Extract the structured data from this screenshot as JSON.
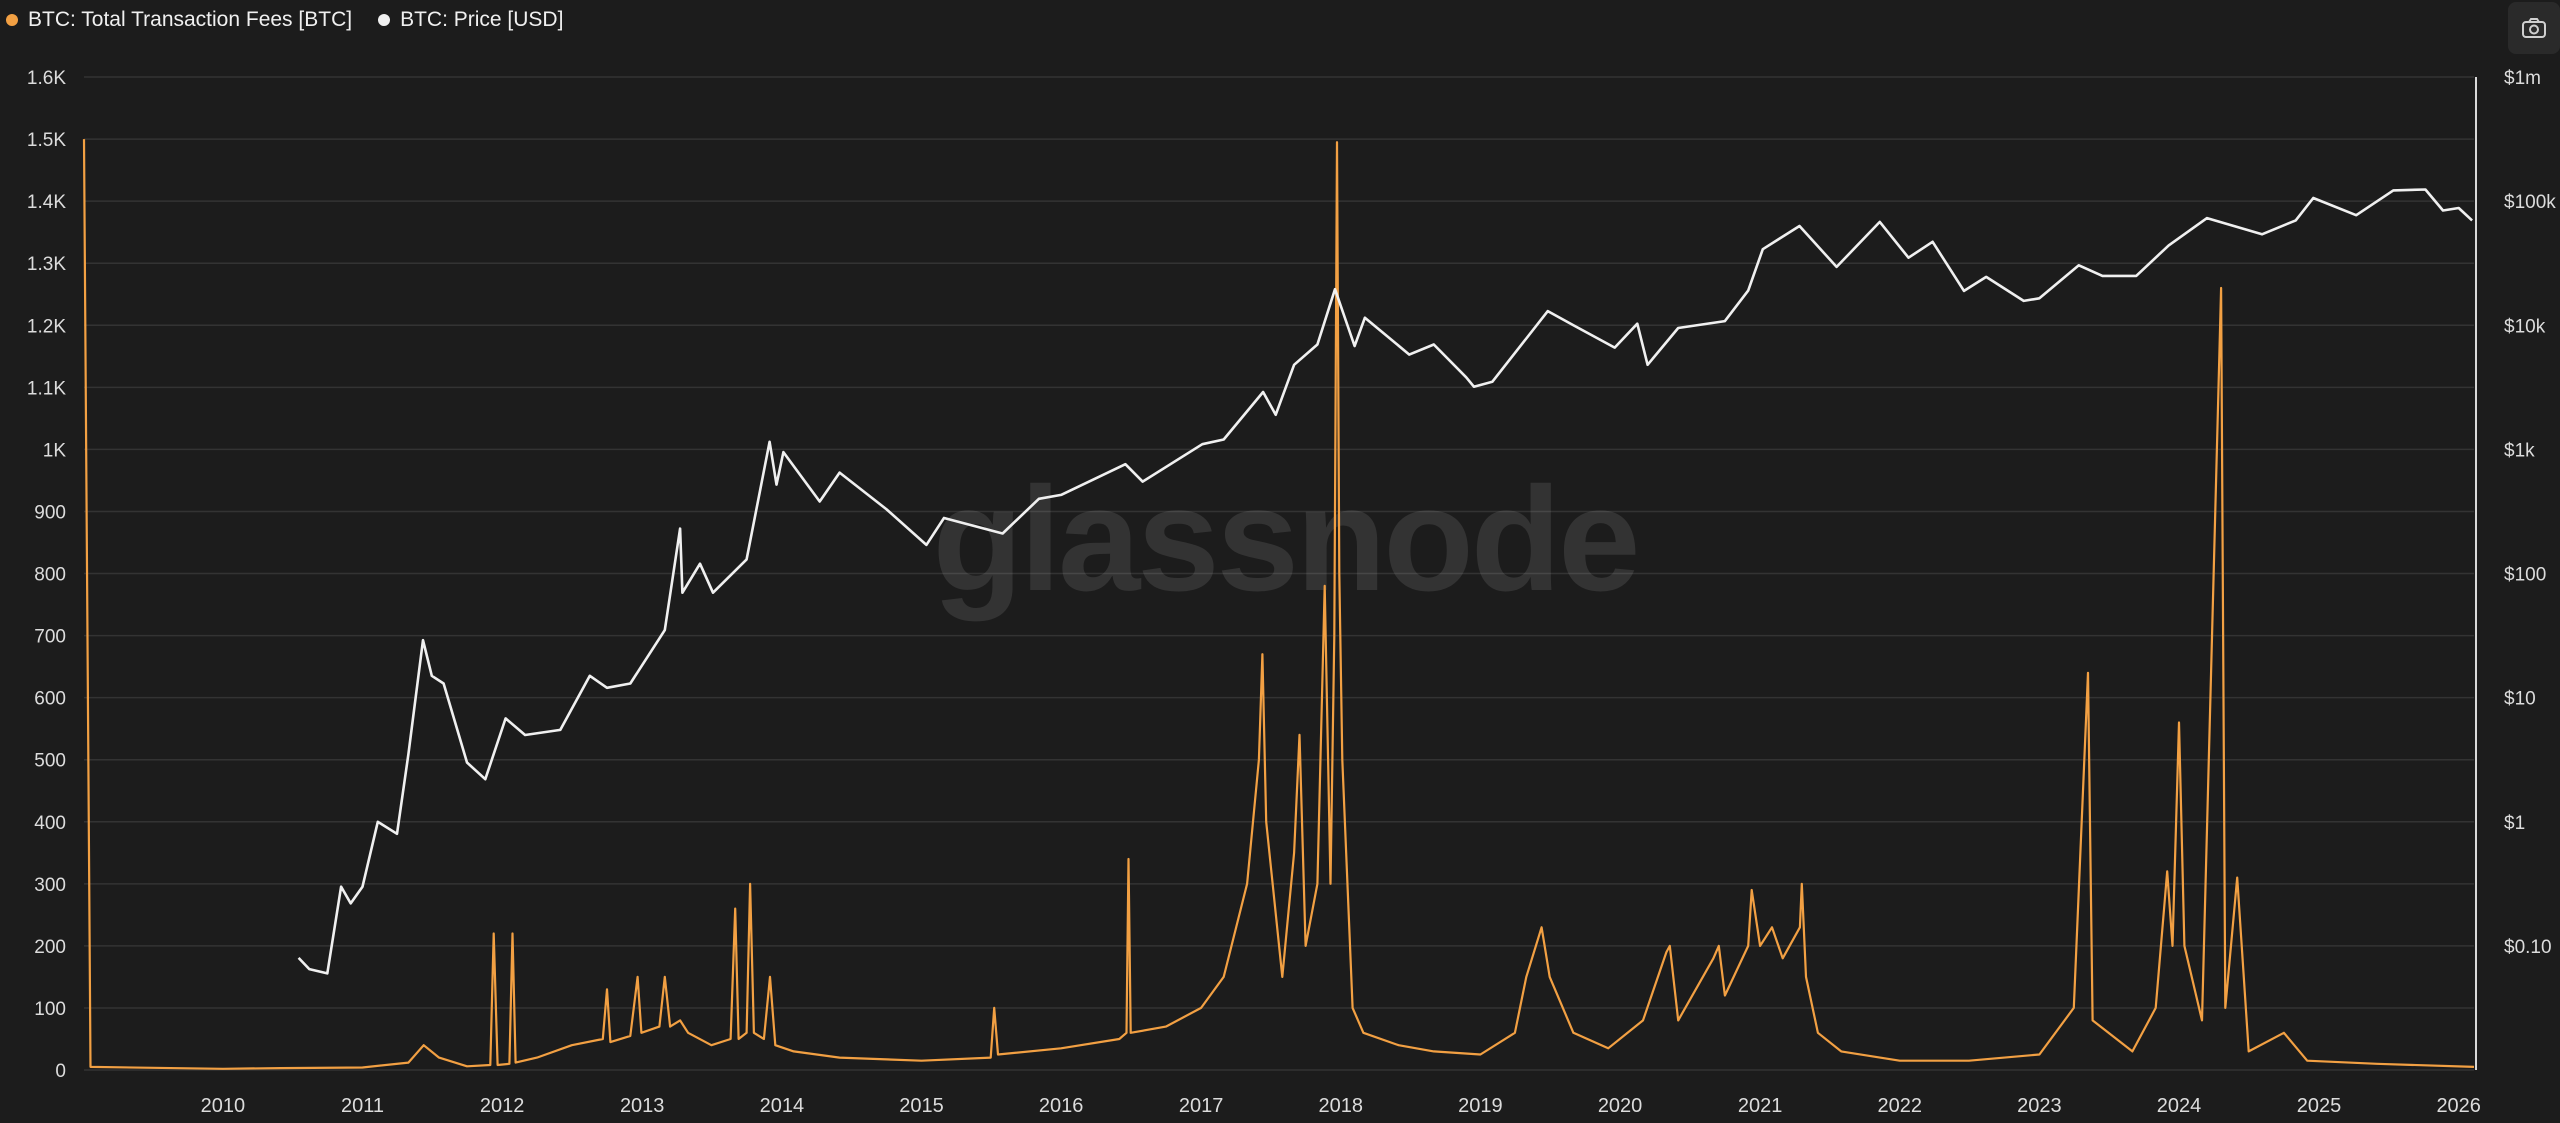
{
  "legend": {
    "fees_label": "BTC: Total Transaction Fees [BTC]",
    "price_label": "BTC: Price [USD]"
  },
  "watermark": "glassnode",
  "colors": {
    "background": "#1c1c1c",
    "fees": "#f2a043",
    "price": "#f0f0f0",
    "grid": "#333333"
  },
  "icons": {
    "camera": "camera-icon"
  },
  "chart_data": {
    "type": "line",
    "grid": true,
    "legend_position": "top-left",
    "x_range": [
      "2009-01-03",
      "2026-02-10"
    ],
    "x_ticks": [
      "2010",
      "2011",
      "2012",
      "2013",
      "2014",
      "2015",
      "2016",
      "2017",
      "2018",
      "2019",
      "2020",
      "2021",
      "2022",
      "2023",
      "2024",
      "2025",
      "2026"
    ],
    "y_left": {
      "scale": "linear",
      "range": [
        0,
        1600
      ],
      "ticks": [
        {
          "v": 0,
          "label": "0"
        },
        {
          "v": 100,
          "label": "100"
        },
        {
          "v": 200,
          "label": "200"
        },
        {
          "v": 300,
          "label": "300"
        },
        {
          "v": 400,
          "label": "400"
        },
        {
          "v": 500,
          "label": "500"
        },
        {
          "v": 600,
          "label": "600"
        },
        {
          "v": 700,
          "label": "700"
        },
        {
          "v": 800,
          "label": "800"
        },
        {
          "v": 900,
          "label": "900"
        },
        {
          "v": 1000,
          "label": "1K"
        },
        {
          "v": 1100,
          "label": "1.1K"
        },
        {
          "v": 1200,
          "label": "1.2K"
        },
        {
          "v": 1300,
          "label": "1.3K"
        },
        {
          "v": 1400,
          "label": "1.4K"
        },
        {
          "v": 1500,
          "label": "1.5K"
        },
        {
          "v": 1600,
          "label": "1.6K"
        }
      ]
    },
    "y_right": {
      "scale": "log",
      "range": [
        0.01,
        1000000
      ],
      "ticks": [
        {
          "v": 0.1,
          "label": "$0.10"
        },
        {
          "v": 1,
          "label": "$1"
        },
        {
          "v": 10,
          "label": "$10"
        },
        {
          "v": 100,
          "label": "$100"
        },
        {
          "v": 1000,
          "label": "$1k"
        },
        {
          "v": 10000,
          "label": "$10k"
        },
        {
          "v": 100000,
          "label": "$100k"
        },
        {
          "v": 1000000,
          "label": "$1m"
        }
      ]
    },
    "series": [
      {
        "name": "BTC: Total Transaction Fees [BTC]",
        "axis": "left",
        "color": "#f2a043",
        "points": [
          [
            "2009-01-03",
            1500
          ],
          [
            "2009-01-20",
            5
          ],
          [
            "2010-01-01",
            2
          ],
          [
            "2010-06-01",
            3
          ],
          [
            "2011-01-01",
            4
          ],
          [
            "2011-05-01",
            12
          ],
          [
            "2011-06-10",
            40
          ],
          [
            "2011-07-20",
            20
          ],
          [
            "2011-10-01",
            6
          ],
          [
            "2011-12-01",
            8
          ],
          [
            "2011-12-10",
            220
          ],
          [
            "2011-12-20",
            8
          ],
          [
            "2012-01-20",
            10
          ],
          [
            "2012-01-28",
            220
          ],
          [
            "2012-02-05",
            12
          ],
          [
            "2012-04-01",
            20
          ],
          [
            "2012-07-01",
            40
          ],
          [
            "2012-09-20",
            50
          ],
          [
            "2012-10-01",
            130
          ],
          [
            "2012-10-10",
            45
          ],
          [
            "2012-12-01",
            55
          ],
          [
            "2012-12-20",
            150
          ],
          [
            "2012-12-30",
            60
          ],
          [
            "2013-02-15",
            70
          ],
          [
            "2013-03-01",
            150
          ],
          [
            "2013-03-15",
            70
          ],
          [
            "2013-04-10",
            80
          ],
          [
            "2013-05-01",
            60
          ],
          [
            "2013-07-01",
            40
          ],
          [
            "2013-08-20",
            50
          ],
          [
            "2013-09-01",
            260
          ],
          [
            "2013-09-10",
            50
          ],
          [
            "2013-10-01",
            60
          ],
          [
            "2013-10-10",
            300
          ],
          [
            "2013-10-20",
            60
          ],
          [
            "2013-11-15",
            50
          ],
          [
            "2013-12-01",
            150
          ],
          [
            "2013-12-15",
            40
          ],
          [
            "2014-02-01",
            30
          ],
          [
            "2014-06-01",
            20
          ],
          [
            "2015-01-01",
            15
          ],
          [
            "2015-07-01",
            20
          ],
          [
            "2015-07-10",
            100
          ],
          [
            "2015-07-20",
            25
          ],
          [
            "2016-01-01",
            35
          ],
          [
            "2016-06-01",
            50
          ],
          [
            "2016-06-20",
            60
          ],
          [
            "2016-06-25",
            340
          ],
          [
            "2016-07-01",
            60
          ],
          [
            "2016-10-01",
            70
          ],
          [
            "2017-01-01",
            100
          ],
          [
            "2017-03-01",
            150
          ],
          [
            "2017-05-01",
            300
          ],
          [
            "2017-06-01",
            500
          ],
          [
            "2017-06-10",
            670
          ],
          [
            "2017-06-20",
            400
          ],
          [
            "2017-08-01",
            150
          ],
          [
            "2017-09-01",
            350
          ],
          [
            "2017-09-15",
            540
          ],
          [
            "2017-10-01",
            200
          ],
          [
            "2017-11-01",
            300
          ],
          [
            "2017-11-20",
            780
          ],
          [
            "2017-12-05",
            300
          ],
          [
            "2017-12-15",
            700
          ],
          [
            "2017-12-22",
            1495
          ],
          [
            "2017-12-28",
            800
          ],
          [
            "2018-01-05",
            500
          ],
          [
            "2018-02-01",
            100
          ],
          [
            "2018-03-01",
            60
          ],
          [
            "2018-06-01",
            40
          ],
          [
            "2018-09-01",
            30
          ],
          [
            "2019-01-01",
            25
          ],
          [
            "2019-04-01",
            60
          ],
          [
            "2019-05-01",
            150
          ],
          [
            "2019-06-10",
            230
          ],
          [
            "2019-07-01",
            150
          ],
          [
            "2019-09-01",
            60
          ],
          [
            "2019-12-01",
            35
          ],
          [
            "2020-03-01",
            80
          ],
          [
            "2020-05-01",
            190
          ],
          [
            "2020-05-10",
            200
          ],
          [
            "2020-06-01",
            80
          ],
          [
            "2020-09-01",
            180
          ],
          [
            "2020-09-15",
            200
          ],
          [
            "2020-10-01",
            120
          ],
          [
            "2020-12-01",
            200
          ],
          [
            "2020-12-10",
            290
          ],
          [
            "2021-01-01",
            200
          ],
          [
            "2021-02-01",
            230
          ],
          [
            "2021-03-01",
            180
          ],
          [
            "2021-04-15",
            230
          ],
          [
            "2021-04-20",
            300
          ],
          [
            "2021-05-01",
            150
          ],
          [
            "2021-06-01",
            60
          ],
          [
            "2021-08-01",
            30
          ],
          [
            "2022-01-01",
            15
          ],
          [
            "2022-07-01",
            15
          ],
          [
            "2023-01-01",
            25
          ],
          [
            "2023-04-01",
            100
          ],
          [
            "2023-05-08",
            640
          ],
          [
            "2023-05-20",
            80
          ],
          [
            "2023-09-01",
            30
          ],
          [
            "2023-11-01",
            100
          ],
          [
            "2023-12-01",
            320
          ],
          [
            "2023-12-15",
            200
          ],
          [
            "2024-01-01",
            560
          ],
          [
            "2024-01-15",
            200
          ],
          [
            "2024-03-01",
            80
          ],
          [
            "2024-04-20",
            1260
          ],
          [
            "2024-05-01",
            100
          ],
          [
            "2024-06-01",
            310
          ],
          [
            "2024-07-01",
            30
          ],
          [
            "2024-10-01",
            60
          ],
          [
            "2024-12-01",
            15
          ],
          [
            "2025-06-01",
            10
          ],
          [
            "2026-02-10",
            5
          ]
        ]
      },
      {
        "name": "BTC: Price [USD]",
        "axis": "right",
        "color": "#f0f0f0",
        "points": [
          [
            "2010-07-18",
            0.08
          ],
          [
            "2010-08-15",
            0.065
          ],
          [
            "2010-10-01",
            0.06
          ],
          [
            "2010-11-06",
            0.3
          ],
          [
            "2010-12-01",
            0.22
          ],
          [
            "2011-01-01",
            0.3
          ],
          [
            "2011-02-10",
            1.0
          ],
          [
            "2011-04-01",
            0.8
          ],
          [
            "2011-05-01",
            3.5
          ],
          [
            "2011-06-08",
            29
          ],
          [
            "2011-07-01",
            15
          ],
          [
            "2011-08-01",
            13
          ],
          [
            "2011-10-01",
            3
          ],
          [
            "2011-11-18",
            2.2
          ],
          [
            "2012-01-10",
            6.8
          ],
          [
            "2012-03-01",
            5
          ],
          [
            "2012-06-01",
            5.5
          ],
          [
            "2012-08-17",
            15
          ],
          [
            "2012-10-01",
            12
          ],
          [
            "2012-12-01",
            13
          ],
          [
            "2013-03-01",
            35
          ],
          [
            "2013-04-10",
            230
          ],
          [
            "2013-04-16",
            70
          ],
          [
            "2013-06-01",
            120
          ],
          [
            "2013-07-05",
            70
          ],
          [
            "2013-10-01",
            130
          ],
          [
            "2013-11-30",
            1150
          ],
          [
            "2013-12-18",
            520
          ],
          [
            "2014-01-05",
            950
          ],
          [
            "2014-04-10",
            380
          ],
          [
            "2014-06-01",
            650
          ],
          [
            "2014-10-01",
            330
          ],
          [
            "2015-01-14",
            170
          ],
          [
            "2015-03-01",
            280
          ],
          [
            "2015-08-01",
            210
          ],
          [
            "2015-11-04",
            400
          ],
          [
            "2016-01-01",
            430
          ],
          [
            "2016-06-17",
            760
          ],
          [
            "2016-08-01",
            550
          ],
          [
            "2017-01-04",
            1100
          ],
          [
            "2017-03-01",
            1200
          ],
          [
            "2017-06-12",
            2900
          ],
          [
            "2017-07-15",
            1900
          ],
          [
            "2017-09-01",
            4800
          ],
          [
            "2017-11-01",
            7000
          ],
          [
            "2017-12-17",
            19500
          ],
          [
            "2018-02-06",
            6800
          ],
          [
            "2018-03-05",
            11500
          ],
          [
            "2018-06-29",
            5800
          ],
          [
            "2018-09-01",
            7000
          ],
          [
            "2018-11-25",
            3800
          ],
          [
            "2018-12-15",
            3200
          ],
          [
            "2019-02-01",
            3500
          ],
          [
            "2019-06-26",
            13000
          ],
          [
            "2019-09-01",
            10000
          ],
          [
            "2019-12-18",
            6600
          ],
          [
            "2020-02-15",
            10300
          ],
          [
            "2020-03-13",
            4800
          ],
          [
            "2020-06-01",
            9500
          ],
          [
            "2020-10-01",
            10800
          ],
          [
            "2020-12-01",
            19000
          ],
          [
            "2021-01-08",
            41000
          ],
          [
            "2021-04-14",
            63000
          ],
          [
            "2021-07-20",
            29500
          ],
          [
            "2021-11-10",
            68000
          ],
          [
            "2022-01-24",
            35000
          ],
          [
            "2022-03-28",
            47000
          ],
          [
            "2022-06-18",
            18900
          ],
          [
            "2022-08-15",
            24500
          ],
          [
            "2022-11-21",
            15700
          ],
          [
            "2023-01-01",
            16500
          ],
          [
            "2023-04-14",
            30400
          ],
          [
            "2023-06-15",
            25000
          ],
          [
            "2023-09-11",
            25000
          ],
          [
            "2023-12-05",
            44000
          ],
          [
            "2024-03-14",
            73000
          ],
          [
            "2024-08-05",
            54000
          ],
          [
            "2024-11-01",
            70000
          ],
          [
            "2024-12-17",
            106000
          ],
          [
            "2025-04-08",
            77000
          ],
          [
            "2025-07-14",
            122000
          ],
          [
            "2025-10-06",
            124000
          ],
          [
            "2025-11-21",
            84000
          ],
          [
            "2026-01-01",
            88000
          ],
          [
            "2026-02-05",
            70000
          ]
        ]
      }
    ]
  }
}
